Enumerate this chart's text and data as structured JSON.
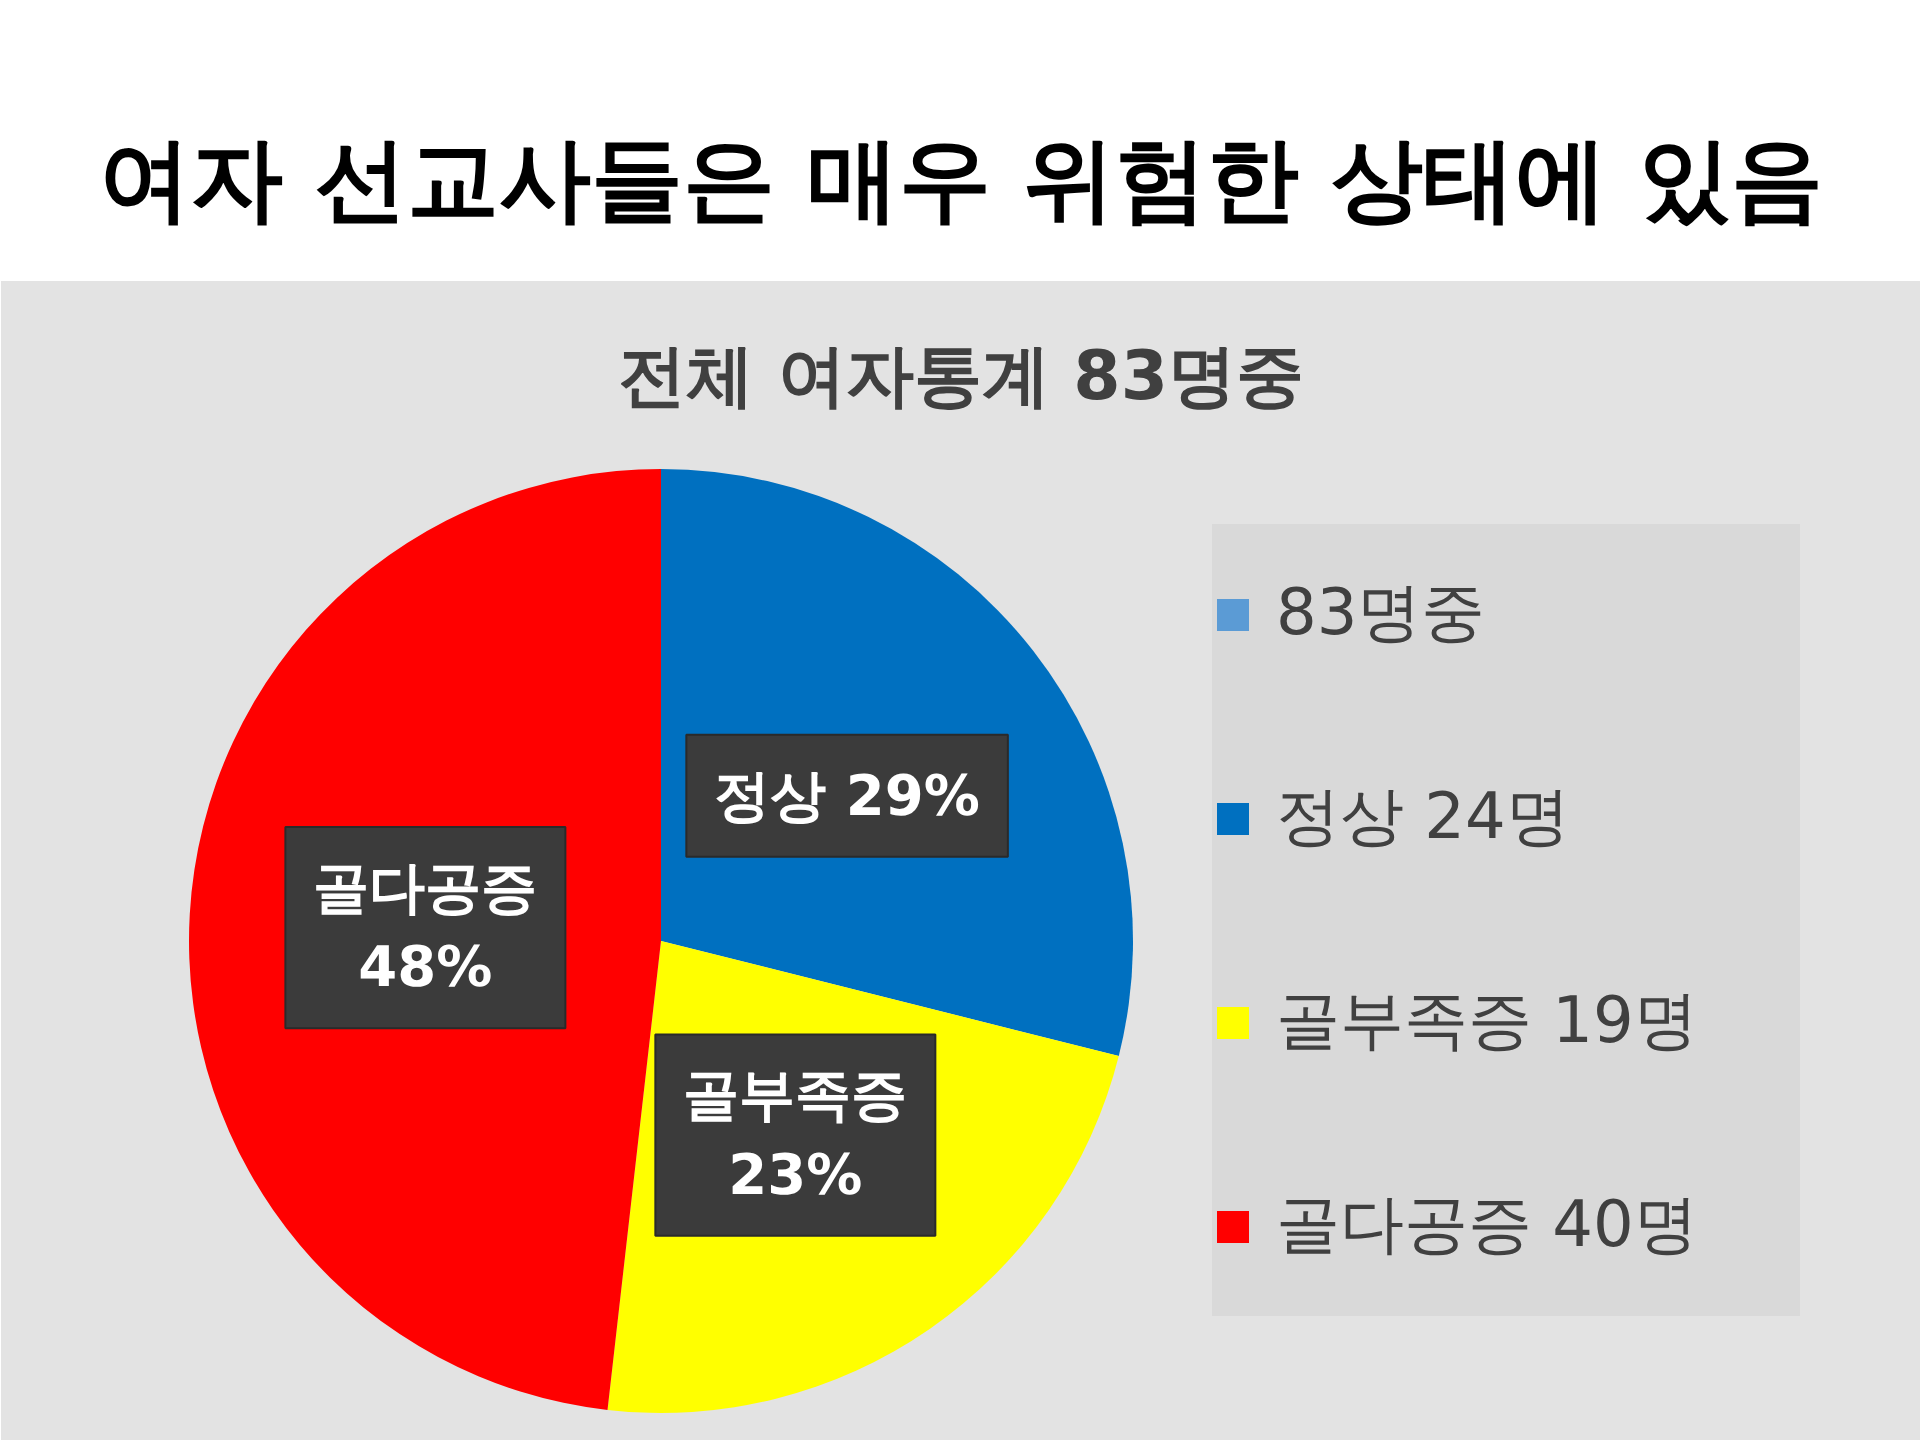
{
  "chart_data": {
    "type": "pie",
    "title": "여자 선교사들은 매우 위험한 상태에 있음",
    "subtitle": "전체 여자통계 83명중",
    "categories": [
      "83명중",
      "정상 24명",
      "골부족증 19명",
      "골다공증 40명"
    ],
    "values": [
      0,
      24,
      19,
      40
    ],
    "colors": [
      "#5b9bd5",
      "#0070c0",
      "#ffff00",
      "#ff0000"
    ],
    "value_labels": [
      null,
      "정상 29%",
      "골부족증 23%",
      "골다공증 48%"
    ],
    "legend": "right"
  }
}
